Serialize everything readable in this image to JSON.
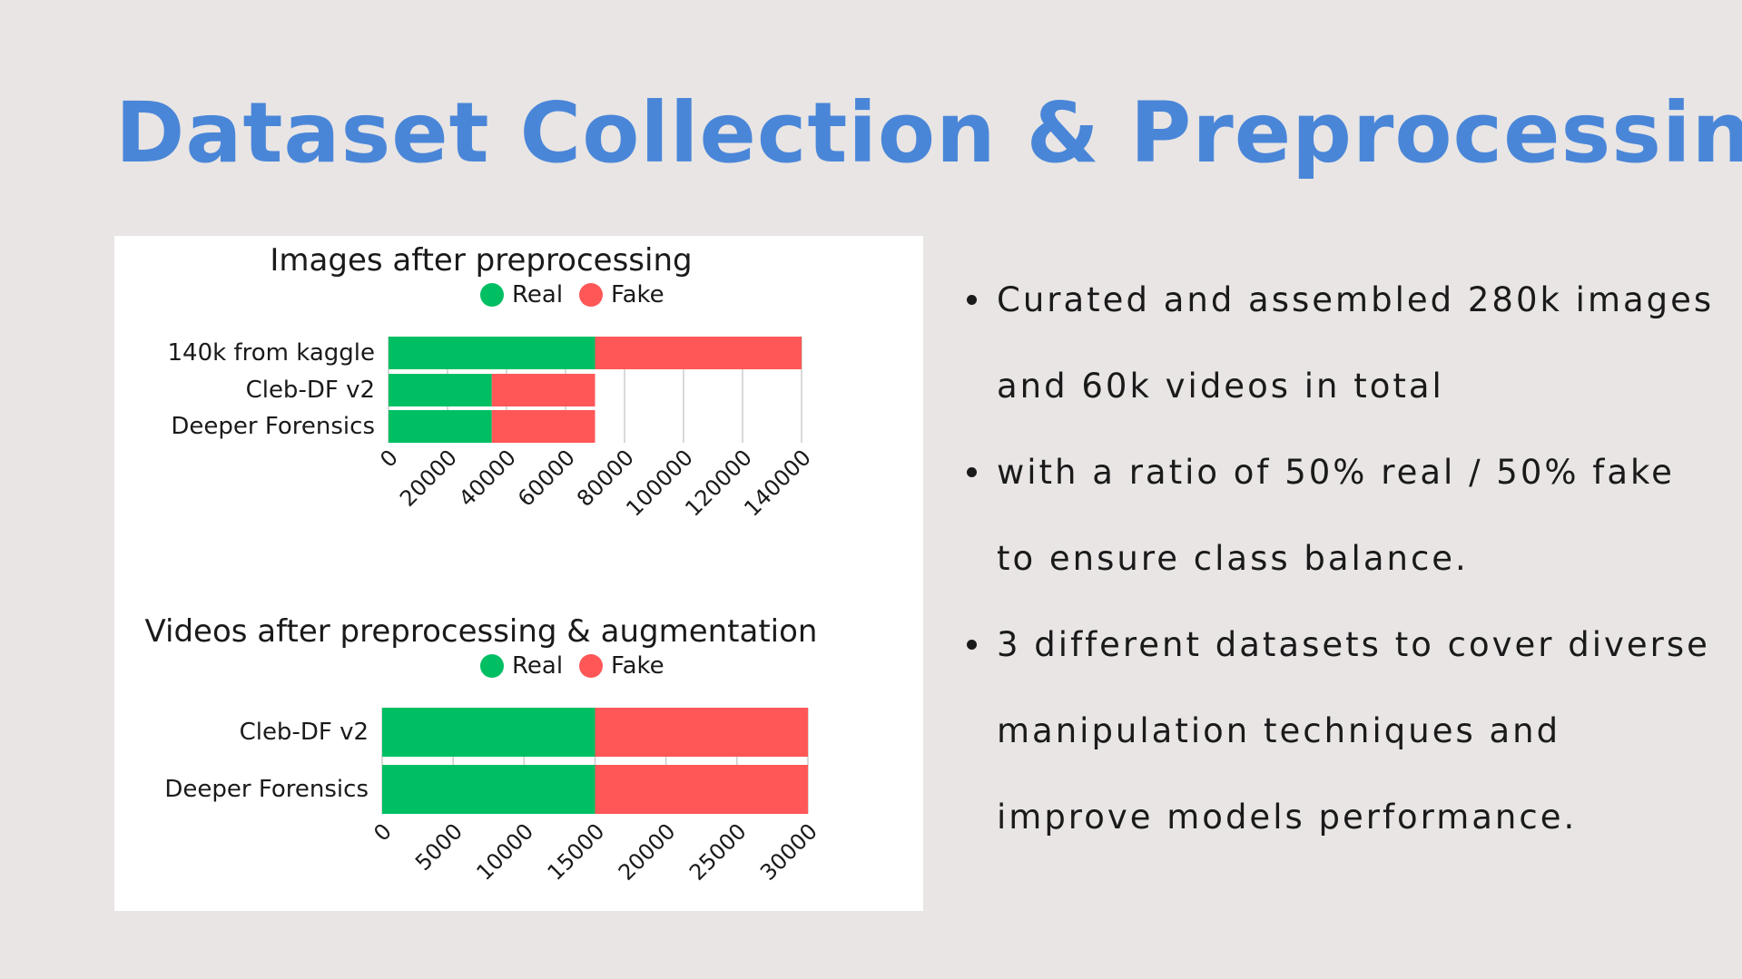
{
  "slide": {
    "title": "Dataset Collection & Preprocessing",
    "bullets": [
      "Curated and assembled 280k images and 60k videos in total",
      "with a ratio of 50% real / 50% fake to ensure class balance.",
      "3 different datasets to cover diverse manipulation techniques and improve models performance."
    ]
  },
  "colors": {
    "real": "#00bf63",
    "fake": "#ff5757",
    "title": "#4a86d8",
    "background": "#e8e5e4"
  },
  "chart_data": [
    {
      "type": "bar",
      "orientation": "horizontal",
      "stacked": true,
      "title": "Images after preprocessing",
      "categories": [
        "140k from kaggle",
        "Cleb-DF v2",
        "Deeper Forensics"
      ],
      "series": [
        {
          "name": "Real",
          "values": [
            70000,
            35000,
            35000
          ]
        },
        {
          "name": "Fake",
          "values": [
            70000,
            35000,
            35000
          ]
        }
      ],
      "xticks": [
        0,
        20000,
        40000,
        60000,
        80000,
        100000,
        120000,
        140000
      ],
      "xlim": [
        0,
        140000
      ],
      "legend": "top",
      "grid": true
    },
    {
      "type": "bar",
      "orientation": "horizontal",
      "stacked": true,
      "title": "Videos after preprocessing & augmentation",
      "categories": [
        "Cleb-DF v2",
        "Deeper Forensics"
      ],
      "series": [
        {
          "name": "Real",
          "values": [
            15000,
            15000
          ]
        },
        {
          "name": "Fake",
          "values": [
            15000,
            15000
          ]
        }
      ],
      "xticks": [
        0,
        5000,
        10000,
        15000,
        20000,
        25000,
        30000
      ],
      "xlim": [
        0,
        30000
      ],
      "legend": "top",
      "grid": true
    }
  ]
}
